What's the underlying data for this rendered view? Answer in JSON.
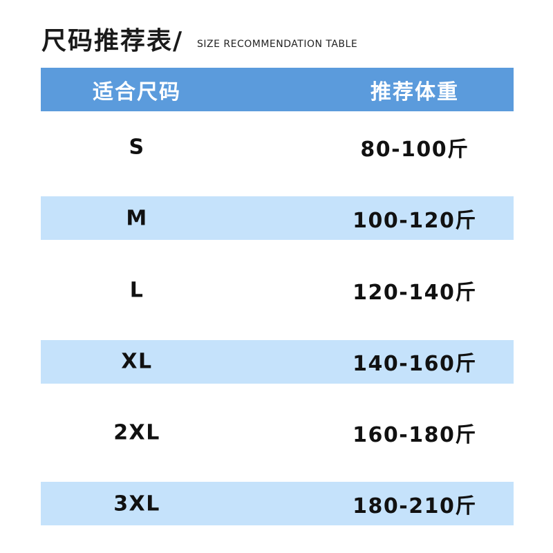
{
  "title": "尺码推荐表/",
  "subtitle": "SIZE RECOMMENDATION TABLE",
  "colors": {
    "header": "#5b9bdc",
    "band": "#c5e2fb"
  },
  "table": {
    "headers": [
      "适合尺码",
      "推荐体重"
    ],
    "rows": [
      {
        "size": "S",
        "weight": "80-100斤"
      },
      {
        "size": "M",
        "weight": "100-120斤"
      },
      {
        "size": "L",
        "weight": "120-140斤"
      },
      {
        "size": "XL",
        "weight": "140-160斤"
      },
      {
        "size": "2XL",
        "weight": "160-180斤"
      },
      {
        "size": "3XL",
        "weight": "180-210斤"
      }
    ]
  }
}
